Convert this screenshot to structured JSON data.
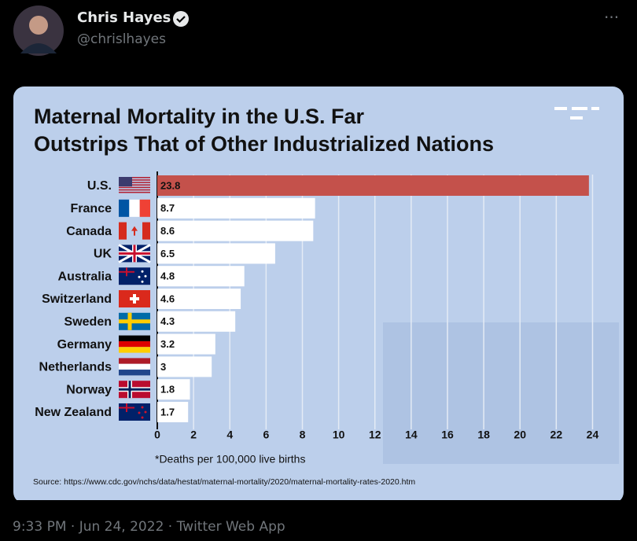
{
  "tweet": {
    "author": "Chris Hayes",
    "handle": "@chrislhayes",
    "footer": "9:33 PM · Jun 24, 2022 · Twitter Web App"
  },
  "chart_data": {
    "type": "bar",
    "title": [
      "Maternal Mortality in the U.S. Far",
      "Outstrips That of Other Industrialized Nations"
    ],
    "categories": [
      "U.S.",
      "France",
      "Canada",
      "UK",
      "Australia",
      "Switzerland",
      "Sweden",
      "Germany",
      "Netherlands",
      "Norway",
      "New Zealand"
    ],
    "values": [
      23.8,
      8.7,
      8.6,
      6.5,
      4.8,
      4.6,
      4.3,
      3.2,
      3,
      1.8,
      1.7
    ],
    "colors": [
      "#c4514b",
      "#ffffff",
      "#ffffff",
      "#ffffff",
      "#ffffff",
      "#ffffff",
      "#ffffff",
      "#ffffff",
      "#ffffff",
      "#ffffff",
      "#ffffff"
    ],
    "xlim": [
      0,
      24.5
    ],
    "xticks": [
      0,
      2,
      4,
      6,
      8,
      10,
      12,
      14,
      16,
      18,
      20,
      22,
      24
    ],
    "grid": true,
    "footnote": "*Deaths per 100,000 live births",
    "source": "Source: https://www.cdc.gov/nchs/data/hestat/maternal-mortality/2020/maternal-mortality-rates-2020.htm"
  }
}
